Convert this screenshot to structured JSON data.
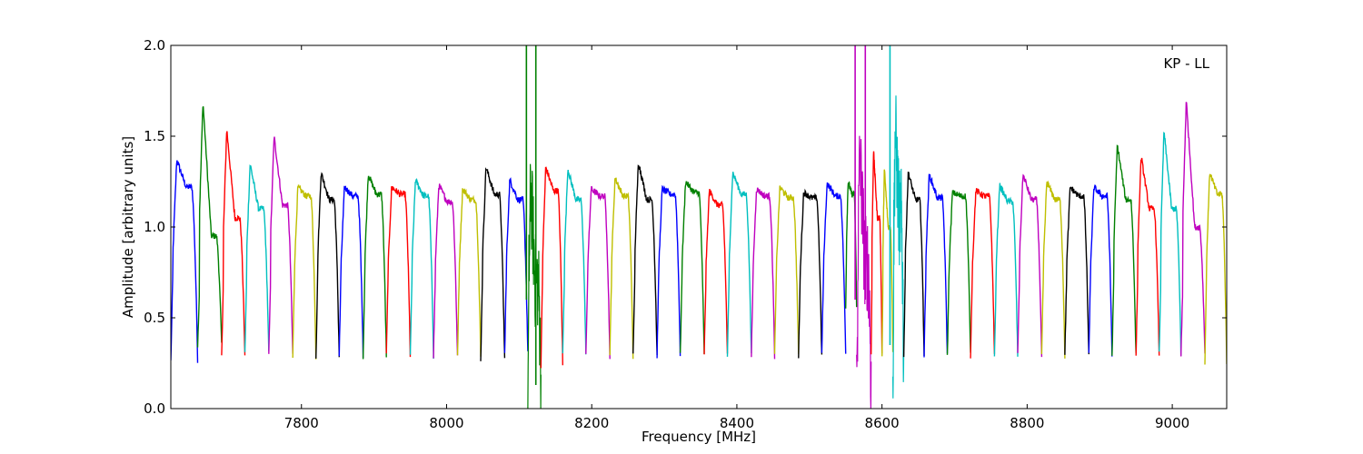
{
  "chart_data": {
    "type": "line",
    "title": "",
    "annotation": "KP - LL",
    "xlabel": "Frequency [MHz]",
    "ylabel": "Amplitude [arbitrary units]",
    "xlim": [
      7620,
      9075
    ],
    "ylim": [
      0.0,
      2.0
    ],
    "xticks": [
      7800,
      8000,
      8200,
      8400,
      8600,
      8800,
      9000
    ],
    "xtick_labels": [
      "7800",
      "8000",
      "8200",
      "8400",
      "8600",
      "8800",
      "9000"
    ],
    "yticks": [
      0.0,
      0.5,
      1.0,
      1.5,
      2.0
    ],
    "ytick_labels": [
      "0.0",
      "0.5",
      "1.0",
      "1.5",
      "2.0"
    ],
    "grid": false,
    "legend": "none",
    "color_cycle": [
      "#0000ff",
      "#008000",
      "#ff0000",
      "#00bfbf",
      "#bf00bf",
      "#bfbf00",
      "#000000"
    ],
    "series": [
      {
        "x_start": 7620,
        "x_end": 7657,
        "peak": 1.37,
        "level": 1.22,
        "low": 0.26,
        "color": "#0000ff"
      },
      {
        "x_start": 7657,
        "x_end": 7690,
        "peak": 1.69,
        "level": 0.95,
        "low": 0.35,
        "color": "#008000"
      },
      {
        "x_start": 7690,
        "x_end": 7722,
        "peak": 1.54,
        "level": 1.05,
        "low": 0.3,
        "color": "#ff0000"
      },
      {
        "x_start": 7722,
        "x_end": 7755,
        "peak": 1.35,
        "level": 1.1,
        "low": 0.3,
        "color": "#00bfbf"
      },
      {
        "x_start": 7755,
        "x_end": 7788,
        "peak": 1.5,
        "level": 1.12,
        "low": 0.3,
        "color": "#bf00bf"
      },
      {
        "x_start": 7788,
        "x_end": 7820,
        "peak": 1.22,
        "level": 1.17,
        "low": 0.28,
        "color": "#bfbf00"
      },
      {
        "x_start": 7820,
        "x_end": 7852,
        "peak": 1.3,
        "level": 1.15,
        "low": 0.29,
        "color": "#000000"
      },
      {
        "x_start": 7852,
        "x_end": 7885,
        "peak": 1.22,
        "level": 1.17,
        "low": 0.29,
        "color": "#0000ff"
      },
      {
        "x_start": 7885,
        "x_end": 7917,
        "peak": 1.29,
        "level": 1.18,
        "low": 0.29,
        "color": "#008000"
      },
      {
        "x_start": 7917,
        "x_end": 7950,
        "peak": 1.22,
        "level": 1.18,
        "low": 0.29,
        "color": "#ff0000"
      },
      {
        "x_start": 7950,
        "x_end": 7982,
        "peak": 1.26,
        "level": 1.17,
        "low": 0.29,
        "color": "#00bfbf"
      },
      {
        "x_start": 7982,
        "x_end": 8015,
        "peak": 1.23,
        "level": 1.14,
        "low": 0.29,
        "color": "#bf00bf"
      },
      {
        "x_start": 8015,
        "x_end": 8047,
        "peak": 1.21,
        "level": 1.15,
        "low": 0.28,
        "color": "#bfbf00"
      },
      {
        "x_start": 8047,
        "x_end": 8080,
        "peak": 1.33,
        "level": 1.18,
        "low": 0.27,
        "color": "#000000"
      },
      {
        "x_start": 8080,
        "x_end": 8112,
        "peak": 1.26,
        "level": 1.15,
        "low": 0.3,
        "color": "#0000ff"
      },
      {
        "x_start": 8112,
        "x_end": 8130,
        "peak": 1.22,
        "level": 0.7,
        "low": 0.13,
        "color": "#008000"
      },
      {
        "x_start": 8130,
        "x_end": 8160,
        "peak": 1.33,
        "level": 1.2,
        "low": 0.24,
        "color": "#ff0000"
      },
      {
        "x_start": 8160,
        "x_end": 8192,
        "peak": 1.32,
        "level": 1.15,
        "low": 0.3,
        "color": "#00bfbf"
      },
      {
        "x_start": 8192,
        "x_end": 8225,
        "peak": 1.21,
        "level": 1.17,
        "low": 0.29,
        "color": "#bf00bf"
      },
      {
        "x_start": 8225,
        "x_end": 8257,
        "peak": 1.27,
        "level": 1.17,
        "low": 0.29,
        "color": "#bfbf00"
      },
      {
        "x_start": 8257,
        "x_end": 8290,
        "peak": 1.36,
        "level": 1.15,
        "low": 0.29,
        "color": "#000000"
      },
      {
        "x_start": 8290,
        "x_end": 8322,
        "peak": 1.21,
        "level": 1.18,
        "low": 0.29,
        "color": "#0000ff"
      },
      {
        "x_start": 8322,
        "x_end": 8355,
        "peak": 1.25,
        "level": 1.19,
        "low": 0.29,
        "color": "#008000"
      },
      {
        "x_start": 8355,
        "x_end": 8387,
        "peak": 1.2,
        "level": 1.12,
        "low": 0.29,
        "color": "#ff0000"
      },
      {
        "x_start": 8387,
        "x_end": 8420,
        "peak": 1.3,
        "level": 1.18,
        "low": 0.29,
        "color": "#00bfbf"
      },
      {
        "x_start": 8420,
        "x_end": 8452,
        "peak": 1.21,
        "level": 1.17,
        "low": 0.29,
        "color": "#bf00bf"
      },
      {
        "x_start": 8452,
        "x_end": 8485,
        "peak": 1.22,
        "level": 1.16,
        "low": 0.29,
        "color": "#bfbf00"
      },
      {
        "x_start": 8485,
        "x_end": 8517,
        "peak": 1.19,
        "level": 1.16,
        "low": 0.29,
        "color": "#000000"
      },
      {
        "x_start": 8517,
        "x_end": 8550,
        "peak": 1.24,
        "level": 1.17,
        "low": 0.3,
        "color": "#0000ff"
      },
      {
        "x_start": 8550,
        "x_end": 8565,
        "peak": 1.25,
        "level": 1.18,
        "low": 0.55,
        "color": "#008000"
      },
      {
        "x_start": 8565,
        "x_end": 8585,
        "peak": 1.4,
        "level": 0.8,
        "low": 0.13,
        "color": "#bf00bf"
      },
      {
        "x_start": 8585,
        "x_end": 8600,
        "peak": 1.42,
        "level": 1.05,
        "low": 0.3,
        "color": "#ff0000"
      },
      {
        "x_start": 8600,
        "x_end": 8615,
        "peak": 1.32,
        "level": 1.0,
        "low": 0.3,
        "color": "#bfbf00"
      },
      {
        "x_start": 8615,
        "x_end": 8630,
        "peak": 1.55,
        "level": 1.05,
        "low": 0.17,
        "color": "#00bfbf"
      },
      {
        "x_start": 8630,
        "x_end": 8658,
        "peak": 1.3,
        "level": 1.15,
        "low": 0.3,
        "color": "#000000"
      },
      {
        "x_start": 8658,
        "x_end": 8690,
        "peak": 1.29,
        "level": 1.16,
        "low": 0.29,
        "color": "#0000ff"
      },
      {
        "x_start": 8690,
        "x_end": 8722,
        "peak": 1.19,
        "level": 1.17,
        "low": 0.29,
        "color": "#008000"
      },
      {
        "x_start": 8722,
        "x_end": 8755,
        "peak": 1.2,
        "level": 1.17,
        "low": 0.29,
        "color": "#ff0000"
      },
      {
        "x_start": 8755,
        "x_end": 8787,
        "peak": 1.23,
        "level": 1.14,
        "low": 0.29,
        "color": "#00bfbf"
      },
      {
        "x_start": 8787,
        "x_end": 8820,
        "peak": 1.29,
        "level": 1.15,
        "low": 0.29,
        "color": "#bf00bf"
      },
      {
        "x_start": 8820,
        "x_end": 8852,
        "peak": 1.25,
        "level": 1.15,
        "low": 0.29,
        "color": "#bfbf00"
      },
      {
        "x_start": 8852,
        "x_end": 8885,
        "peak": 1.22,
        "level": 1.17,
        "low": 0.29,
        "color": "#000000"
      },
      {
        "x_start": 8885,
        "x_end": 8917,
        "peak": 1.22,
        "level": 1.17,
        "low": 0.29,
        "color": "#0000ff"
      },
      {
        "x_start": 8917,
        "x_end": 8950,
        "peak": 1.45,
        "level": 1.15,
        "low": 0.29,
        "color": "#008000"
      },
      {
        "x_start": 8950,
        "x_end": 8982,
        "peak": 1.39,
        "level": 1.1,
        "low": 0.29,
        "color": "#ff0000"
      },
      {
        "x_start": 8982,
        "x_end": 9012,
        "peak": 1.53,
        "level": 1.1,
        "low": 0.3,
        "color": "#00bfbf"
      },
      {
        "x_start": 9012,
        "x_end": 9045,
        "peak": 1.7,
        "level": 1.0,
        "low": 0.3,
        "color": "#bf00bf"
      },
      {
        "x_start": 9045,
        "x_end": 9075,
        "peak": 1.3,
        "level": 1.18,
        "low": 0.26,
        "color": "#bfbf00"
      }
    ],
    "spikes": [
      {
        "x": 8110,
        "y_top": 2.0,
        "y_bottom": 0.6,
        "color": "#008000"
      },
      {
        "x": 8123,
        "y_top": 2.0,
        "y_bottom": 0.13,
        "color": "#008000"
      },
      {
        "x": 8563,
        "y_top": 2.0,
        "y_bottom": 0.6,
        "color": "#bf00bf"
      },
      {
        "x": 8577,
        "y_top": 2.0,
        "y_bottom": 0.6,
        "color": "#bf00bf"
      },
      {
        "x": 8611,
        "y_top": 2.0,
        "y_bottom": 0.35,
        "color": "#00bfbf"
      }
    ]
  }
}
